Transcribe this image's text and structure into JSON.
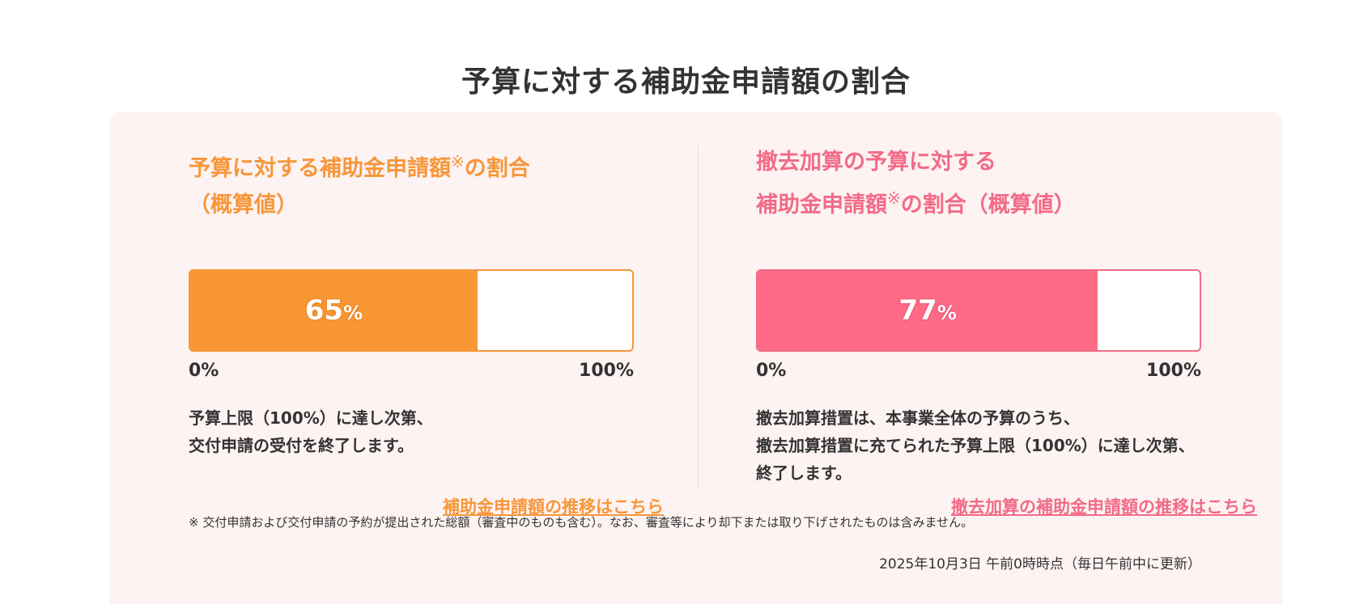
{
  "page": {
    "title": "予算に対する補助金申請額の割合"
  },
  "left": {
    "heading_line1": "予算に対する補助金申請額",
    "heading_mark": "※",
    "heading_line1_suffix": "の割合",
    "heading_line2": "（概算値）",
    "progress_percent": 65,
    "value_text": "65",
    "value_unit": "%",
    "scale_min": "0%",
    "scale_max": "100%",
    "desc_lines": [
      "予算上限（100%）に達し次第、",
      "交付申請の受付を終了します。"
    ],
    "link_label": "補助金申請額の推移はこちら",
    "color": "#f89733"
  },
  "right": {
    "heading_line1": "撤去加算の予算に対する",
    "heading_line2_prefix": "補助金申請額",
    "heading_mark": "※",
    "heading_line2_suffix": "の割合（概算値）",
    "progress_percent": 77,
    "value_text": "77",
    "value_unit": "%",
    "scale_min": "0%",
    "scale_max": "100%",
    "desc_lines": [
      "撤去加算措置は、本事業全体の予算のうち、",
      "撤去加算措置に充てられた予算上限（100%）に達し次第、",
      "終了します。"
    ],
    "link_label": "撤去加算の補助金申請額の推移はこちら",
    "color": "#ff6b87"
  },
  "footnote": "※  交付申請および交付申請の予約が提出された総額（審査中のものも含む）。なお、審査等により却下または取り下げされたものは含みません。",
  "timestamp": "2025年10月3日 午前0時時点（毎日午前中に更新）"
}
